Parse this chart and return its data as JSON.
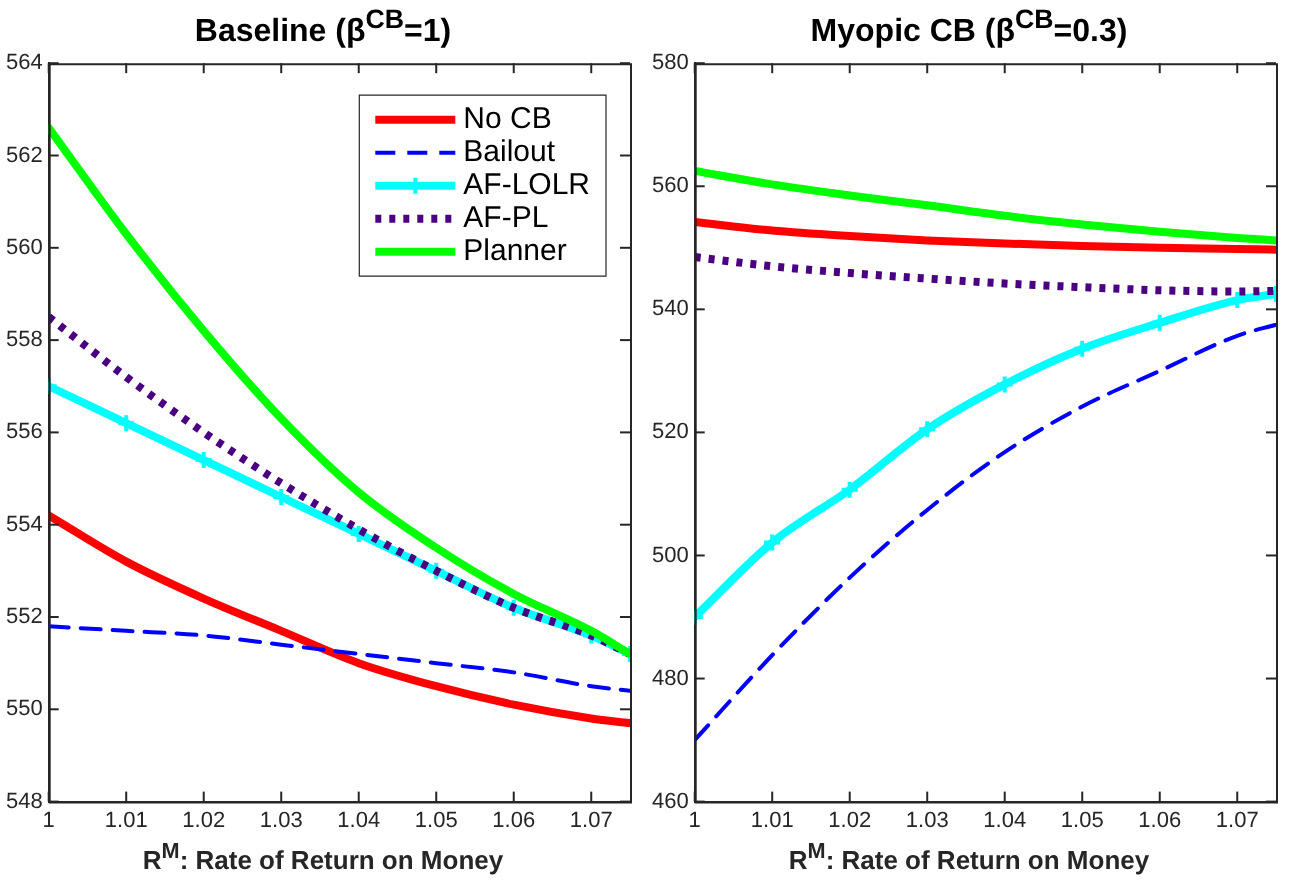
{
  "chart_data": [
    {
      "type": "line",
      "title": "Baseline (β$^{CB}$=1)",
      "xlabel": "R$^{M}$: Rate of Return on Money",
      "x": [
        1,
        1.01,
        1.02,
        1.03,
        1.04,
        1.05,
        1.06,
        1.07,
        1.075
      ],
      "xlim": [
        1,
        1.075
      ],
      "xticks": [
        1,
        1.01,
        1.02,
        1.03,
        1.04,
        1.05,
        1.06,
        1.07
      ],
      "ylim": [
        548,
        564
      ],
      "yticks": [
        548,
        550,
        552,
        554,
        556,
        558,
        560,
        562,
        564
      ],
      "grid": false,
      "legend": "top right",
      "series": [
        {
          "name": "No CB",
          "color": "#ff0000",
          "line_style": "solid",
          "marker": "none",
          "values": [
            554.2,
            553.2,
            552.4,
            551.7,
            551.0,
            550.5,
            550.1,
            549.8,
            549.7
          ]
        },
        {
          "name": "Bailout",
          "color": "#0000ff",
          "line_style": "dashed",
          "marker": "none",
          "values": [
            551.8,
            551.7,
            551.6,
            551.4,
            551.2,
            551.0,
            550.8,
            550.5,
            550.4
          ]
        },
        {
          "name": "AF-LOLR",
          "color": "#00ffff",
          "line_style": "solid",
          "marker": "cross",
          "values": [
            557.0,
            556.2,
            555.4,
            554.6,
            553.8,
            553.0,
            552.2,
            551.6,
            551.2
          ]
        },
        {
          "name": "AF-PL",
          "color": "#4b0082",
          "line_style": "dotted",
          "marker": "none",
          "values": [
            558.5,
            557.2,
            556.0,
            554.9,
            553.9,
            553.0,
            552.2,
            551.6,
            551.2
          ]
        },
        {
          "name": "Planner",
          "color": "#00ff00",
          "line_style": "solid",
          "marker": "none",
          "values": [
            562.6,
            560.3,
            558.2,
            556.3,
            554.7,
            553.5,
            552.5,
            551.7,
            551.2
          ]
        }
      ]
    },
    {
      "type": "line",
      "title": "Myopic CB (β$^{CB}$=0.3)",
      "xlabel": "R$^{M}$: Rate of Return on Money",
      "x": [
        1,
        1.01,
        1.02,
        1.03,
        1.04,
        1.05,
        1.06,
        1.07,
        1.075
      ],
      "xlim": [
        1,
        1.075
      ],
      "xticks": [
        1,
        1.01,
        1.02,
        1.03,
        1.04,
        1.05,
        1.06,
        1.07
      ],
      "ylim": [
        460,
        580
      ],
      "yticks": [
        460,
        480,
        500,
        520,
        540,
        560,
        580
      ],
      "grid": false,
      "series": [
        {
          "color": "#ff0000",
          "line_style": "solid",
          "marker": "none",
          "values": [
            554.2,
            552.8,
            551.9,
            551.2,
            550.7,
            550.3,
            550.0,
            549.8,
            549.7
          ]
        },
        {
          "color": "#0000ff",
          "line_style": "dashed",
          "marker": "none",
          "values": [
            470,
            483.8,
            496.4,
            507.4,
            516.8,
            524.2,
            530,
            535.7,
            537.5
          ]
        },
        {
          "color": "#00ffff",
          "line_style": "solid",
          "marker": "cross",
          "values": [
            490,
            502.1,
            510.7,
            520.5,
            527.8,
            533.6,
            537.8,
            541.5,
            542.5
          ]
        },
        {
          "color": "#4b0082",
          "line_style": "dotted",
          "marker": "none",
          "values": [
            548.5,
            547.0,
            545.9,
            545.0,
            544.2,
            543.6,
            543.1,
            542.9,
            543.0
          ]
        },
        {
          "color": "#00ff00",
          "line_style": "solid",
          "marker": "none",
          "values": [
            562.5,
            560.3,
            558.5,
            556.9,
            555.2,
            553.8,
            552.6,
            551.6,
            551.2
          ]
        }
      ]
    }
  ]
}
